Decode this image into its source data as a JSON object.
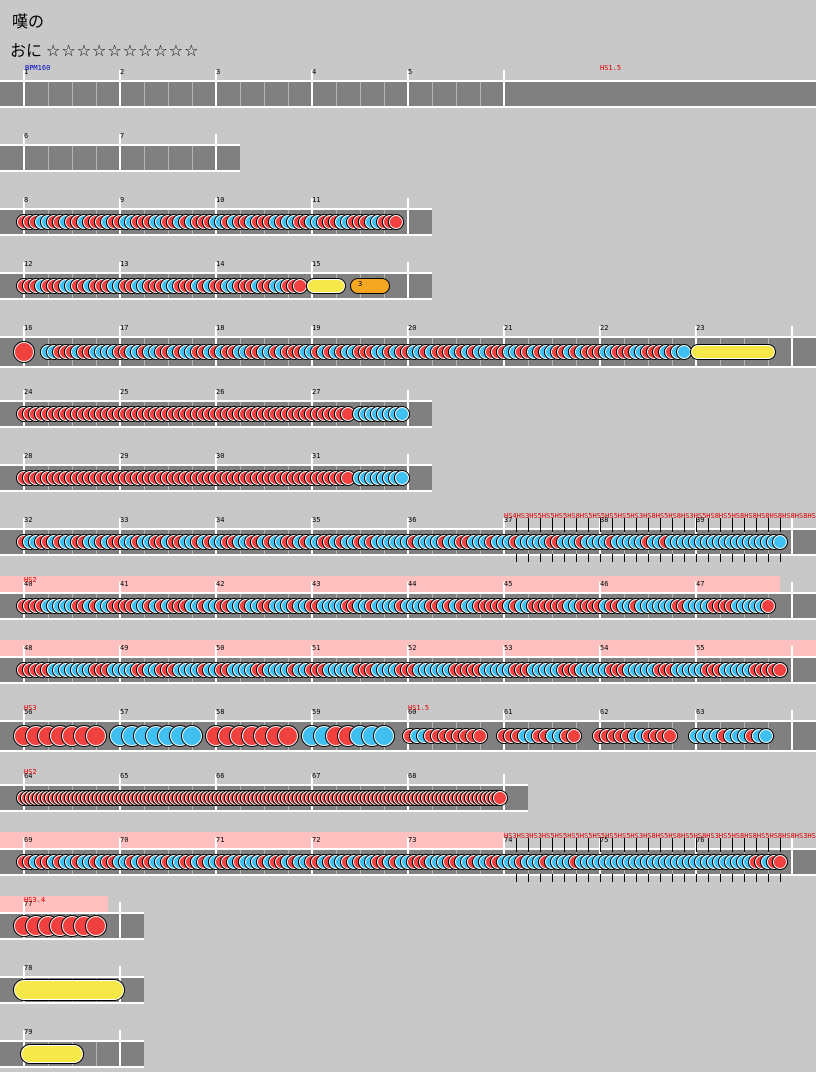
{
  "song": {
    "title": "嘆の"
  },
  "course": {
    "name": "おに",
    "stars": "☆☆☆☆☆☆☆☆☆☆"
  },
  "colors": {
    "don": "#f04040",
    "ka": "#40c0f0",
    "roll": "#f7e84a",
    "balloon": "#f5a623",
    "lane": "#808080",
    "speed_highlight": "#ffc0c0",
    "bpm_label": "#0000c0",
    "scroll_label": "#e00000"
  },
  "labels": {
    "bpm": "BPM160",
    "hs15": "HS1.5",
    "hs2": "HS2",
    "hs3": "HS3",
    "hs34": "HS3.4",
    "hs_dense_a": "HS4HS3HS5HS5HS5HS8HS5HS5HS5HS5HS3HS8HS5HS8HS3HS5HS8HS5HS8HS8HS8HS8HS8HS8HS8",
    "hs_dense_b": "HS3HS3HS3HS5HS5HS5HS5HS5HS5HS5HS3HS8HS5HS8HS5HS8HS3HS5HS8HS8HS5HS8HS8HS3HS3HS6"
  },
  "balloon_hits": "3",
  "rows": [
    {
      "measures": [
        "1",
        "2",
        "3",
        "4",
        "5"
      ]
    },
    {
      "measures": [
        "6",
        "7"
      ]
    },
    {
      "measures": [
        "8",
        "9",
        "10",
        "11"
      ]
    },
    {
      "measures": [
        "12",
        "13",
        "14",
        "15"
      ]
    },
    {
      "measures": [
        "16",
        "17",
        "18",
        "19",
        "20",
        "21",
        "22",
        "23"
      ]
    },
    {
      "measures": [
        "24",
        "25",
        "26",
        "27"
      ]
    },
    {
      "measures": [
        "28",
        "29",
        "30",
        "31"
      ]
    },
    {
      "measures": [
        "32",
        "33",
        "34",
        "35",
        "36",
        "37",
        "38",
        "39"
      ]
    },
    {
      "measures": [
        "40",
        "41",
        "42",
        "43",
        "44",
        "45",
        "46",
        "47"
      ]
    },
    {
      "measures": [
        "48",
        "49",
        "50",
        "51",
        "52",
        "53",
        "54",
        "55"
      ]
    },
    {
      "measures": [
        "56",
        "57",
        "58",
        "59",
        "60",
        "61",
        "62",
        "63"
      ]
    },
    {
      "measures": [
        "64",
        "65",
        "66",
        "67",
        "68"
      ]
    },
    {
      "measures": [
        "69",
        "70",
        "71",
        "72",
        "73",
        "74",
        "75",
        "76"
      ]
    },
    {
      "measures": [
        "77"
      ]
    },
    {
      "measures": [
        "78"
      ]
    },
    {
      "measures": [
        "79"
      ]
    }
  ]
}
